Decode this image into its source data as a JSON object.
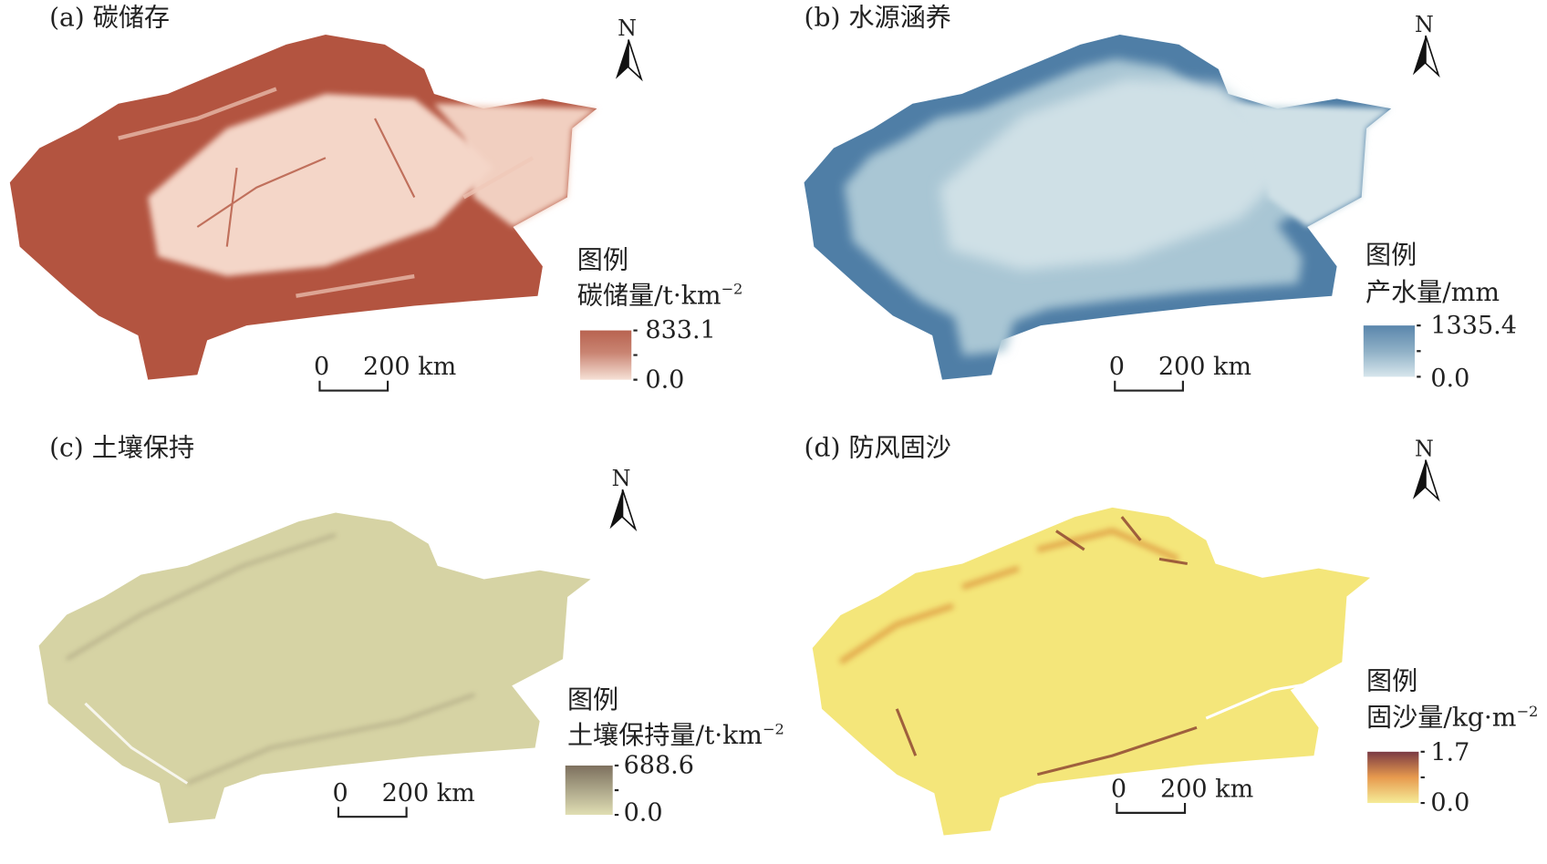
{
  "panels": [
    {
      "id": "a",
      "title": "(a) 碳储存",
      "legend_title": "图例",
      "legend_unit": "碳储量/t·km",
      "legend_unit_sup": "−2",
      "max": "833.1",
      "min": "0.0",
      "scale_zero": "0",
      "scale_label": "200 km",
      "north": "N",
      "colors": {
        "high": "#b35440",
        "low": "#f4d6c8"
      }
    },
    {
      "id": "b",
      "title": "(b) 水源涵养",
      "legend_title": "图例",
      "legend_unit": "产水量/mm",
      "legend_unit_sup": "",
      "max": "1335.4",
      "min": "0.0",
      "scale_zero": "0",
      "scale_label": "200 km",
      "north": "N",
      "colors": {
        "high": "#4f7ea6",
        "low": "#cfe0e6"
      }
    },
    {
      "id": "c",
      "title": "(c) 土壤保持",
      "legend_title": "图例",
      "legend_unit": "土壤保持量/t·km",
      "legend_unit_sup": "−2",
      "max": "688.6",
      "min": "0.0",
      "scale_zero": "0",
      "scale_label": "200 km",
      "north": "N",
      "colors": {
        "high": "#7b6e5c",
        "low": "#d8d6a8"
      }
    },
    {
      "id": "d",
      "title": "(d) 防风固沙",
      "legend_title": "图例",
      "legend_unit": "固沙量/kg·m",
      "legend_unit_sup": "−2",
      "max": "1.7",
      "min": "0.0",
      "scale_zero": "0",
      "scale_label": "200 km",
      "north": "N",
      "colors": {
        "high": "#7a3a43",
        "mid": "#e79a4e",
        "low": "#f5ea8c"
      }
    }
  ]
}
